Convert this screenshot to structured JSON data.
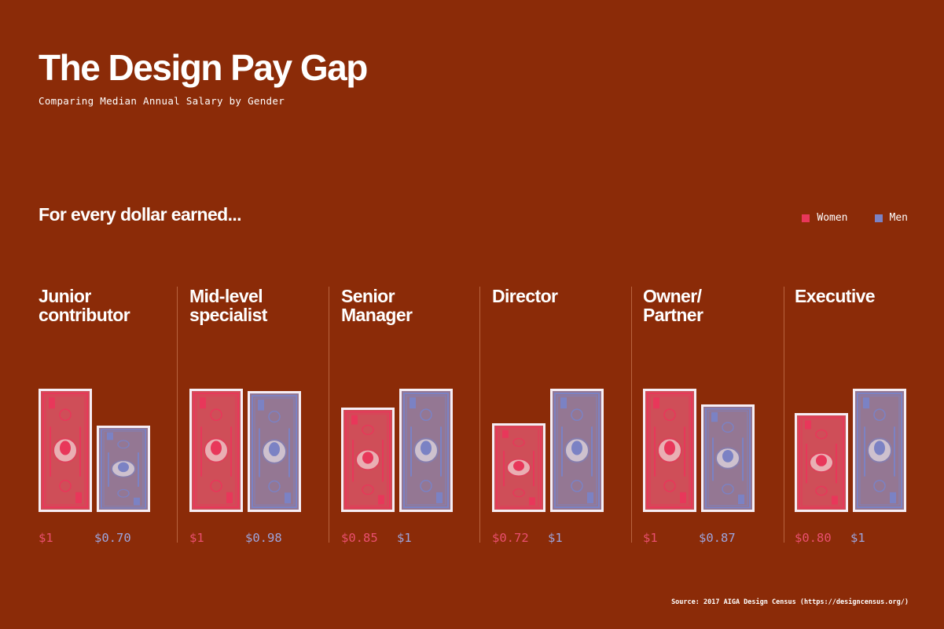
{
  "title": "The Design Pay Gap",
  "subtitle": "Comparing Median Annual Salary by Gender",
  "intro": "For every dollar earned...",
  "source": "Source: 2017 AIGA Design Census (https://designcensus.org/)",
  "colors": {
    "background": "#8b2b08",
    "women": "#e8375a",
    "men": "#7b82c4",
    "women_text": "#e94f6f",
    "men_text": "#9ca4dc"
  },
  "chart_data": {
    "type": "bar",
    "title": "The Design Pay Gap",
    "subtitle": "Comparing Median Annual Salary by Gender",
    "ylabel": "For every dollar earned...",
    "ylim": [
      0,
      1
    ],
    "legend": "top-right",
    "categories": [
      "Junior\ncontributor",
      "Mid-level\nspecialist",
      "Senior\nManager",
      "Director",
      "Owner/\nPartner",
      "Executive"
    ],
    "series": [
      {
        "name": "Women",
        "values": [
          1,
          1,
          0.85,
          0.72,
          1,
          0.8
        ],
        "labels": [
          "$1",
          "$1",
          "$0.85",
          "$0.72",
          "$1",
          "$0.80"
        ]
      },
      {
        "name": "Men",
        "values": [
          0.7,
          0.98,
          1,
          1,
          0.87,
          1
        ],
        "labels": [
          "$0.70",
          "$0.98",
          "$1",
          "$1",
          "$0.87",
          "$1"
        ]
      }
    ]
  }
}
